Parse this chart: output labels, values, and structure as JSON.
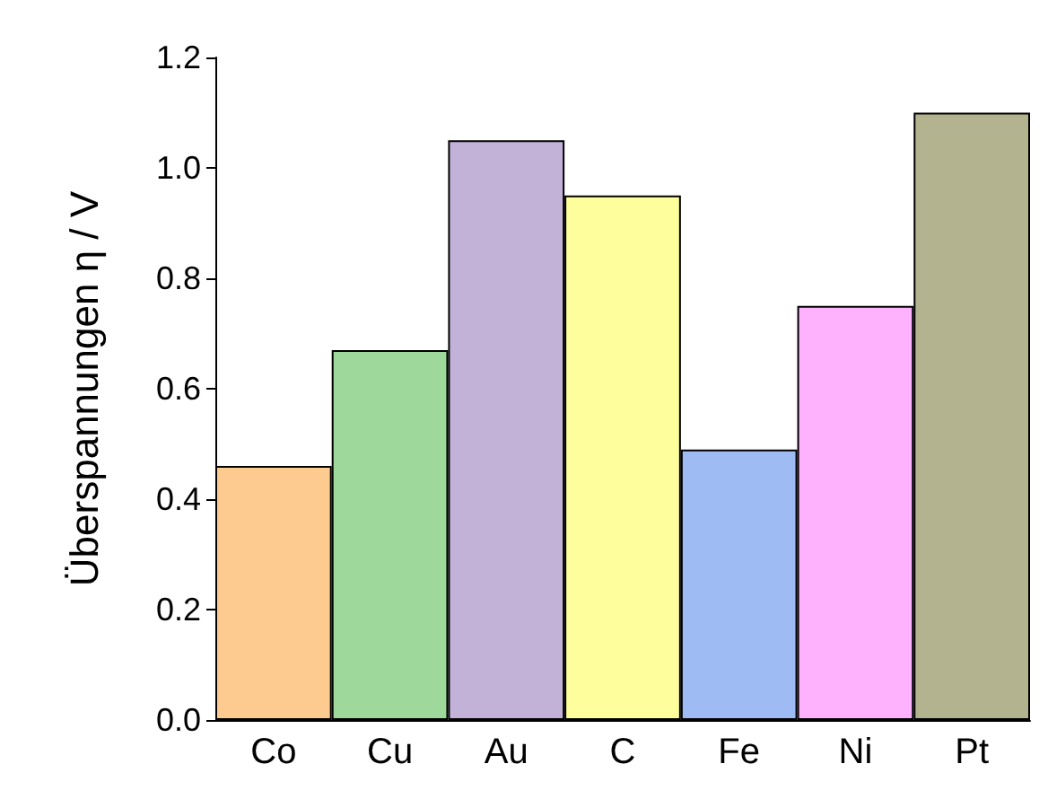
{
  "chart_data": {
    "type": "bar",
    "ylabel": "Überspannungen η / V",
    "categories": [
      "Co",
      "Cu",
      "Au",
      "C",
      "Fe",
      "Ni",
      "Pt"
    ],
    "values": [
      0.46,
      0.67,
      1.05,
      0.95,
      0.49,
      0.75,
      1.1
    ],
    "colors": [
      "#fdcb8f",
      "#9ed89a",
      "#c3b2d8",
      "#fefe9c",
      "#9fbbf4",
      "#feb2fe",
      "#b3b38f"
    ],
    "ylim": [
      0,
      1.2
    ],
    "yticks": [
      {
        "value": 0,
        "label": "0.0"
      },
      0.2,
      0.4,
      0.6,
      0.8,
      {
        "value": 1,
        "label": "1.0"
      },
      1.2
    ],
    "grid": false
  }
}
